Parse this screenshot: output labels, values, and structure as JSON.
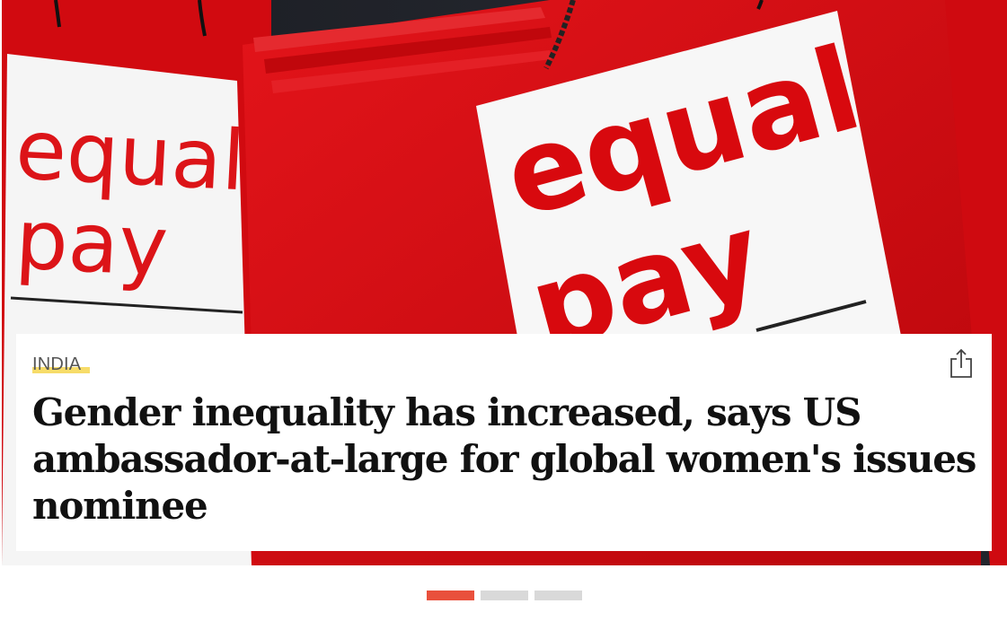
{
  "slide": {
    "image": {
      "sign_left_line1": "equal",
      "sign_left_line2": "pay",
      "sign_right_line1": "equal",
      "sign_right_line2": "pay"
    },
    "category": "INDIA",
    "headline": "Gender inequality has increased, says US ambassador-at-large for global women's issues nominee",
    "share_icon": "share-icon"
  },
  "pagination": {
    "count": 3,
    "active_index": 0
  },
  "colors": {
    "accent": "#e9503c",
    "category_highlight": "#f6d64f",
    "bag_red": "#d3090f"
  }
}
